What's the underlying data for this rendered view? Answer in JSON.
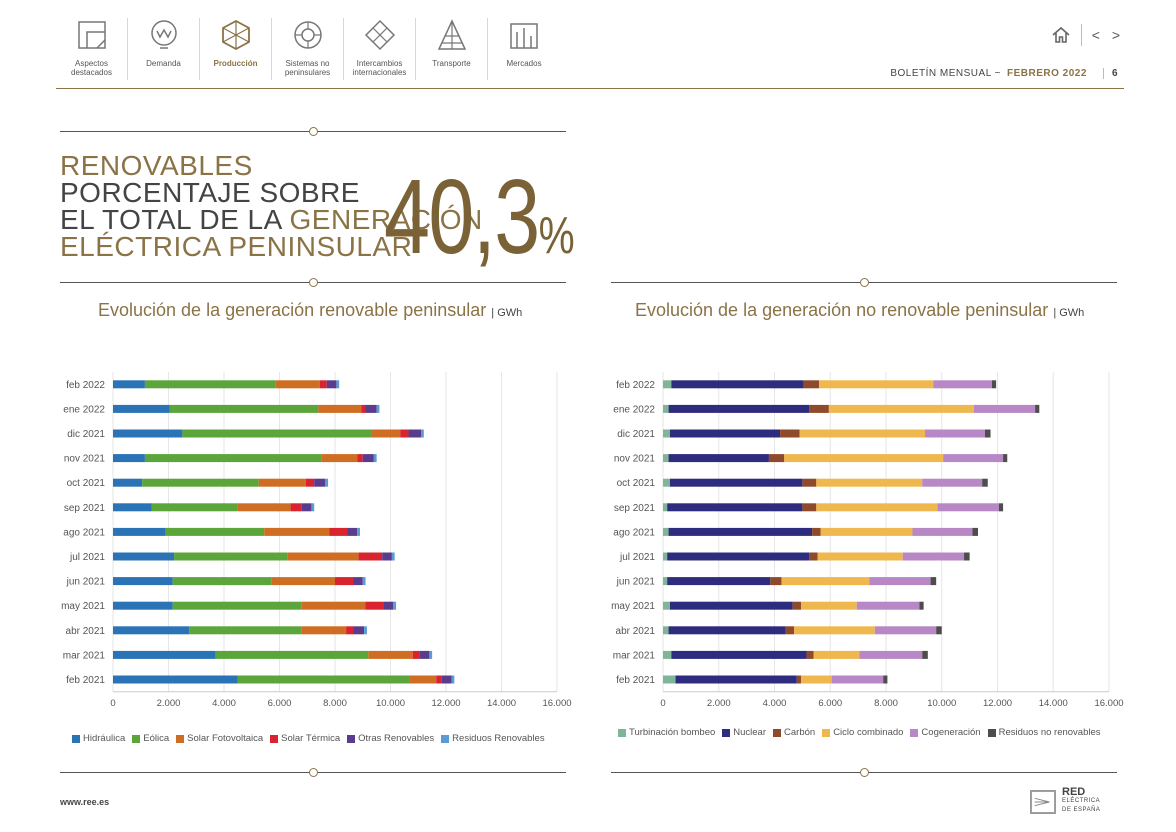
{
  "nav": [
    {
      "label": "Aspectos\ndestacados",
      "icon": "aspects-icon",
      "active": false
    },
    {
      "label": "Demanda",
      "icon": "demand-icon",
      "active": false
    },
    {
      "label": "Producción",
      "icon": "production-icon",
      "active": true
    },
    {
      "label": "Sistemas no\npeninsulares",
      "icon": "systems-icon",
      "active": false
    },
    {
      "label": "Intercambios\ninternacionales",
      "icon": "exchanges-icon",
      "active": false
    },
    {
      "label": "Transporte",
      "icon": "transport-icon",
      "active": false
    },
    {
      "label": "Mercados",
      "icon": "markets-icon",
      "active": false
    }
  ],
  "header": {
    "bulletin": "BOLETÍN MENSUAL ~",
    "month": "FEBRERO 2022",
    "page": "6",
    "arrows": "< >"
  },
  "headline": {
    "line1": "RENOVABLES",
    "line2": "PORCENTAJE SOBRE",
    "line3a": "EL TOTAL DE LA ",
    "line3b": "GENERACIÓN",
    "line4": "ELÉCTRICA PENINSULAR",
    "value": "40,3",
    "percent": "%"
  },
  "footer": {
    "url": "www.ree.es",
    "logo_main": "RED",
    "logo_sub1": "ELÉCTRICA",
    "logo_sub2": "DE ESPAÑA"
  },
  "chart_data": [
    {
      "type": "bar",
      "orientation": "horizontal",
      "stacked": true,
      "title": "Evolución de la generación renovable peninsular",
      "unit": "GWh",
      "categories": [
        "feb 2022",
        "ene 2022",
        "dic 2021",
        "nov 2021",
        "oct 2021",
        "sep 2021",
        "ago 2021",
        "jul 2021",
        "jun 2021",
        "may 2021",
        "abr 2021",
        "mar 2021",
        "feb 2021"
      ],
      "xlim": [
        0,
        16000
      ],
      "xticks": [
        0,
        2000,
        4000,
        6000,
        8000,
        10000,
        12000,
        14000,
        16000
      ],
      "xtick_labels": [
        "0",
        "2.000",
        "4.000",
        "6.000",
        "8.000",
        "10.000",
        "12.000",
        "14.000",
        "16.000"
      ],
      "series": [
        {
          "name": "Hidráulica",
          "color": "#2a73b7",
          "values": [
            1150,
            2050,
            2500,
            1150,
            1050,
            1400,
            1900,
            2200,
            2150,
            2150,
            2750,
            3700,
            4500
          ]
        },
        {
          "name": "Eólica",
          "color": "#5ba53a",
          "values": [
            4700,
            5350,
            6800,
            6350,
            4200,
            3100,
            3550,
            4100,
            3550,
            4650,
            4050,
            5500,
            6200
          ]
        },
        {
          "name": "Solar Fotovoltaica",
          "color": "#cf6d23",
          "values": [
            1600,
            1550,
            1050,
            1300,
            1700,
            1900,
            2350,
            2550,
            2300,
            2300,
            1600,
            1600,
            950
          ]
        },
        {
          "name": "Solar Térmica",
          "color": "#d9232e",
          "values": [
            250,
            150,
            300,
            200,
            300,
            400,
            650,
            850,
            650,
            650,
            250,
            250,
            200
          ]
        },
        {
          "name": "Otras Renovables",
          "color": "#5a3c8c",
          "values": [
            350,
            400,
            450,
            400,
            400,
            350,
            350,
            350,
            350,
            350,
            400,
            350,
            350
          ]
        },
        {
          "name": "Residuos Renovables",
          "color": "#5b9bd5",
          "values": [
            100,
            100,
            100,
            100,
            100,
            100,
            100,
            100,
            100,
            100,
            100,
            100,
            100
          ]
        }
      ]
    },
    {
      "type": "bar",
      "orientation": "horizontal",
      "stacked": true,
      "title": "Evolución de la generación no renovable peninsular",
      "unit": "GWh",
      "categories": [
        "feb 2022",
        "ene 2022",
        "dic 2021",
        "nov 2021",
        "oct 2021",
        "sep 2021",
        "ago 2021",
        "jul 2021",
        "jun 2021",
        "may 2021",
        "abr 2021",
        "mar 2021",
        "feb 2021"
      ],
      "xlim": [
        0,
        16000
      ],
      "xticks": [
        0,
        2000,
        4000,
        6000,
        8000,
        10000,
        12000,
        14000,
        16000
      ],
      "xtick_labels": [
        "0",
        "2.000",
        "4.000",
        "6.000",
        "8.000",
        "10.000",
        "12.000",
        "14.000",
        "16.000"
      ],
      "series": [
        {
          "name": "Turbinación bombeo",
          "color": "#7fb69a",
          "values": [
            300,
            200,
            250,
            200,
            250,
            150,
            200,
            150,
            150,
            250,
            200,
            300,
            450
          ]
        },
        {
          "name": "Nuclear",
          "color": "#2e2c7e",
          "values": [
            4750,
            5050,
            3950,
            3600,
            4750,
            4850,
            5150,
            5100,
            3700,
            4400,
            4200,
            4850,
            4350
          ]
        },
        {
          "name": "Carbón",
          "color": "#8e4a2a",
          "values": [
            550,
            700,
            700,
            550,
            500,
            500,
            300,
            300,
            400,
            300,
            300,
            250,
            150
          ]
        },
        {
          "name": "Ciclo combinado",
          "color": "#efb84e",
          "values": [
            4100,
            5200,
            4500,
            5700,
            3800,
            4350,
            3300,
            3050,
            3150,
            2000,
            2900,
            1650,
            1100
          ]
        },
        {
          "name": "Cogeneración",
          "color": "#b887c6",
          "values": [
            2100,
            2200,
            2150,
            2150,
            2150,
            2200,
            2150,
            2200,
            2200,
            2250,
            2200,
            2250,
            1850
          ]
        },
        {
          "name": "Residuos no renovables",
          "color": "#4d4d4d",
          "values": [
            150,
            150,
            200,
            150,
            200,
            150,
            200,
            200,
            200,
            150,
            200,
            200,
            150
          ]
        }
      ]
    }
  ]
}
